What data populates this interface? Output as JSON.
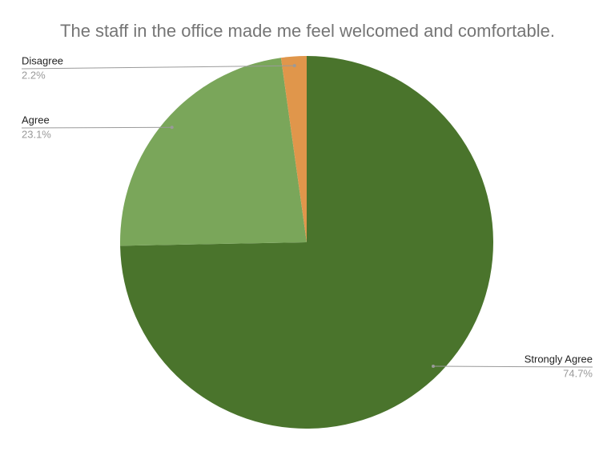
{
  "chart_data": {
    "type": "pie",
    "title": "The staff in the office made me feel welcomed and comfortable.",
    "categories": [
      "Strongly Agree",
      "Agree",
      "Disagree"
    ],
    "values": [
      74.7,
      23.1,
      2.2
    ],
    "value_labels": [
      "74.7%",
      "23.1%",
      "2.2%"
    ],
    "colors": [
      "#4a742c",
      "#7aa65a",
      "#e0964b"
    ]
  }
}
